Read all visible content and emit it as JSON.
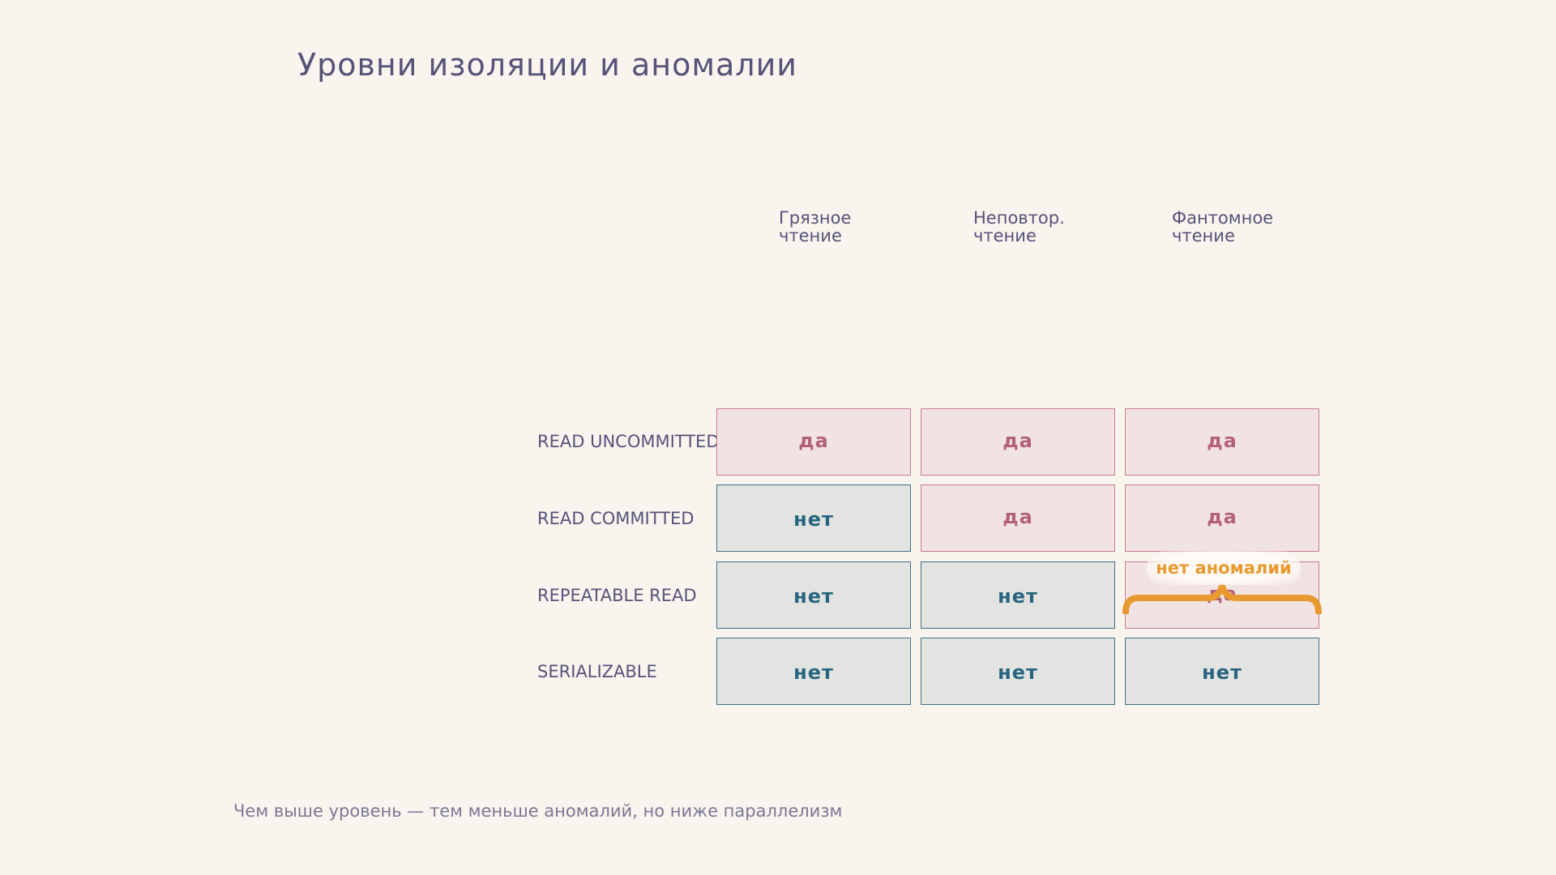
{
  "title": "Уровни изоляции и аномалии",
  "columns": [
    "Грязное\nчтение",
    "Неповтор.\nчтение",
    "Фантомное\nчтение"
  ],
  "rows": [
    {
      "label": "READ UNCOMMITTED",
      "cells": [
        "да",
        "да",
        "да"
      ]
    },
    {
      "label": "READ COMMITTED",
      "cells": [
        "нет",
        "да",
        "да"
      ]
    },
    {
      "label": "REPEATABLE READ",
      "cells": [
        "нет",
        "нет",
        "да"
      ]
    },
    {
      "label": "SERIALIZABLE",
      "cells": [
        "нет",
        "нет",
        "нет"
      ]
    }
  ],
  "annotation": "нет аномалий",
  "footnote": "Чем выше уровень — тем меньше аномалий, но ниже параллелизм",
  "colors": {
    "background": "#faf4ef",
    "yes_fill": "#f2e3e3",
    "yes_border": "#c97c8e",
    "yes_text": "#b3627a",
    "no_fill": "#e3e4e1",
    "no_border": "#3c7188",
    "no_text": "#27647f",
    "accent": "#e89a30"
  }
}
